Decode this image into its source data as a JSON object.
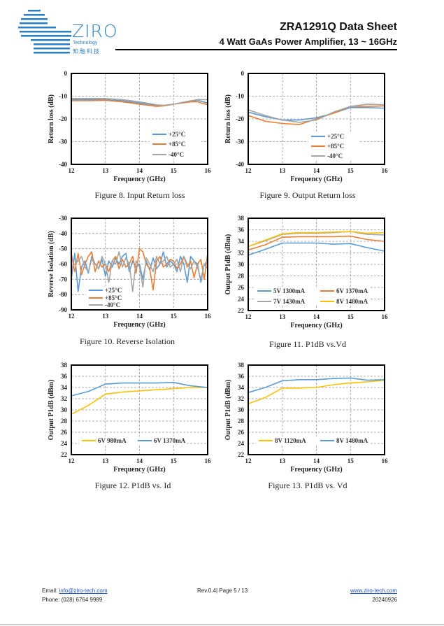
{
  "header": {
    "logo": {
      "name": "ZIRO",
      "tagline": "Technology",
      "chinese": "知融科技",
      "color": "#2b7fc0"
    },
    "title": "ZRA1291Q Data Sheet",
    "subtitle": "4 Watt GaAs Power Amplifier, 13 ~ 16GHz"
  },
  "footer": {
    "email_label": "Email:",
    "email": "info@ziro-tech.com",
    "phone_label": "Phone:",
    "phone": "(028) 6764 9989",
    "revision": "Rev.0.4| Page 5 / 13",
    "website": "www.ziro-tech.com",
    "date": "20240926"
  },
  "chart_data": [
    {
      "type": "line",
      "caption": "Figure 8. Input Return loss",
      "xlabel": "Frequency (GHz)",
      "ylabel": "Return loss (dB)",
      "xlim": [
        12,
        16
      ],
      "ylim": [
        -40,
        0
      ],
      "grid": true,
      "legend": "bottom-right",
      "xticks": [
        "12",
        "13",
        "14",
        "15",
        "16"
      ],
      "yticks": [
        "0",
        "-10",
        "-20",
        "-30",
        "-40"
      ],
      "x": [
        12,
        12.5,
        13,
        13.5,
        14,
        14.5,
        14.7,
        15,
        15.5,
        15.7,
        16
      ],
      "series": [
        {
          "name": "+25°C",
          "color": "#5b9bd5",
          "values": [
            -11.5,
            -11.5,
            -11.5,
            -12,
            -13,
            -14,
            -14.2,
            -13.5,
            -12.5,
            -11.8,
            -13
          ]
        },
        {
          "name": "+85°C",
          "color": "#ed7d31",
          "values": [
            -12,
            -12,
            -11.8,
            -12.5,
            -13.5,
            -14.5,
            -14.3,
            -13.5,
            -12.5,
            -12.5,
            -13.8
          ]
        },
        {
          "name": "-40°C",
          "color": "#a5a5a5",
          "values": [
            -11,
            -11,
            -11,
            -11.5,
            -12.5,
            -13.8,
            -14,
            -13.5,
            -12,
            -11.5,
            -11.5
          ]
        }
      ]
    },
    {
      "type": "line",
      "caption": "Figure 9. Output Return loss",
      "xlabel": "Frequency (GHz)",
      "ylabel": "Return loss (dB)",
      "xlim": [
        12,
        16
      ],
      "ylim": [
        -40,
        0
      ],
      "grid": true,
      "legend": "bottom-right",
      "xticks": [
        "12",
        "13",
        "14",
        "15",
        "16"
      ],
      "yticks": [
        "0",
        "-10",
        "-20",
        "-30",
        "-40"
      ],
      "x": [
        12,
        12.5,
        13,
        13.5,
        14,
        14.5,
        15,
        15.5,
        16
      ],
      "series": [
        {
          "name": "+25°C",
          "color": "#5b9bd5",
          "values": [
            -17,
            -19,
            -20.5,
            -20.5,
            -19.5,
            -17.5,
            -15,
            -15,
            -15.3
          ]
        },
        {
          "name": "+85°C",
          "color": "#ed7d31",
          "values": [
            -18.5,
            -21,
            -22,
            -22.5,
            -20,
            -17.5,
            -14.5,
            -14.5,
            -14.3
          ]
        },
        {
          "name": "-40°C",
          "color": "#a5a5a5",
          "values": [
            -16,
            -18.5,
            -20.5,
            -21.5,
            -20.5,
            -17,
            -14.5,
            -13.5,
            -13.8
          ]
        }
      ]
    },
    {
      "type": "line",
      "caption": "Figure 10. Reverse Isolation",
      "xlabel": "Frequency (GHz)",
      "ylabel": "Reverse Isolation (dB)",
      "xlim": [
        12,
        16
      ],
      "ylim": [
        -90,
        -30
      ],
      "grid": true,
      "legend": "bottom-left",
      "xticks": [
        "12",
        "13",
        "14",
        "15",
        "16"
      ],
      "yticks": [
        "-30",
        "-40",
        "-50",
        "-60",
        "-70",
        "-80",
        "-90"
      ],
      "x": [
        12,
        12.1,
        12.2,
        12.3,
        12.4,
        12.5,
        12.6,
        12.7,
        12.8,
        12.9,
        13,
        13.1,
        13.2,
        13.3,
        13.4,
        13.5,
        13.6,
        13.7,
        13.8,
        13.9,
        14,
        14.1,
        14.2,
        14.3,
        14.4,
        14.5,
        14.6,
        14.7,
        14.8,
        14.9,
        15,
        15.1,
        15.2,
        15.3,
        15.4,
        15.5,
        15.6,
        15.7,
        15.8,
        15.9,
        16
      ],
      "series": [
        {
          "name": "+25°C",
          "color": "#5b9bd5",
          "values": [
            -70,
            -53,
            -78,
            -62,
            -58,
            -66,
            -55,
            -60,
            -63,
            -57,
            -68,
            -58,
            -62,
            -56,
            -60,
            -55,
            -53,
            -65,
            -58,
            -62,
            -60,
            -70,
            -58,
            -64,
            -56,
            -63,
            -60,
            -52,
            -62,
            -58,
            -60,
            -65,
            -55,
            -60,
            -72,
            -55,
            -58,
            -60,
            -72,
            -60,
            -63
          ]
        },
        {
          "name": "+85°C",
          "color": "#ed7d31",
          "values": [
            -53,
            -65,
            -53,
            -67,
            -60,
            -55,
            -52,
            -65,
            -58,
            -62,
            -60,
            -65,
            -58,
            -55,
            -63,
            -57,
            -62,
            -60,
            -55,
            -66,
            -50,
            -52,
            -60,
            -63,
            -77,
            -58,
            -55,
            -62,
            -60,
            -57,
            -58,
            -63,
            -60,
            -55,
            -62,
            -58,
            -69,
            -60,
            -57,
            -70,
            -53
          ]
        },
        {
          "name": "-40°C",
          "color": "#a5a5a5",
          "values": [
            -62,
            -60,
            -58,
            -55,
            -62,
            -65,
            -57,
            -60,
            -63,
            -55,
            -60,
            -72,
            -58,
            -60,
            -52,
            -62,
            -56,
            -60,
            -78,
            -58,
            -62,
            -75,
            -56,
            -60,
            -65,
            -55,
            -60,
            -58,
            -55,
            -62,
            -60,
            -57,
            -65,
            -55,
            -60,
            -63,
            -58,
            -62,
            -70,
            -60,
            -58
          ]
        }
      ]
    },
    {
      "type": "line",
      "caption": "Figure 11. P1dB vs.Vd",
      "xlabel": "Frequency (GHz)",
      "ylabel": "Output P1dB (dBm)",
      "xlim": [
        12,
        16
      ],
      "ylim": [
        22,
        38
      ],
      "grid": true,
      "legend": "bottom",
      "xticks": [
        "12",
        "13",
        "14",
        "15",
        "16"
      ],
      "yticks": [
        "38",
        "36",
        "34",
        "32",
        "30",
        "28",
        "26",
        "24",
        "22"
      ],
      "x": [
        12,
        12.5,
        13,
        13.5,
        14,
        14.5,
        15,
        15.5,
        16
      ],
      "series": [
        {
          "name": "5V 1300mA",
          "color": "#5b9bd5",
          "values": [
            31.6,
            32.6,
            33.7,
            33.7,
            33.7,
            33.5,
            33.6,
            32.9,
            32.3
          ]
        },
        {
          "name": "6V 1370mA",
          "color": "#ed7d31",
          "values": [
            32.5,
            33.4,
            34.7,
            34.8,
            34.8,
            34.8,
            34.9,
            34.3,
            34.0
          ]
        },
        {
          "name": "7V 1430mA",
          "color": "#a5a5a5",
          "values": [
            33.1,
            34.1,
            35.2,
            35.4,
            35.4,
            35.5,
            35.7,
            35.2,
            35.1
          ]
        },
        {
          "name": "8V 1480mA",
          "color": "#ffc000",
          "values": [
            33.1,
            34.2,
            35.3,
            35.5,
            35.5,
            35.6,
            35.7,
            35.4,
            35.5
          ]
        }
      ]
    },
    {
      "type": "line",
      "caption": "Figure 12. P1dB vs. Id",
      "xlabel": "Frequency (GHz)",
      "ylabel": "Output P1dB (dBm)",
      "xlim": [
        12,
        16
      ],
      "ylim": [
        22,
        38
      ],
      "grid": true,
      "legend": "bottom",
      "xticks": [
        "12",
        "13",
        "14",
        "15",
        "16"
      ],
      "yticks": [
        "38",
        "36",
        "34",
        "32",
        "30",
        "28",
        "26",
        "24",
        "22"
      ],
      "x": [
        12,
        12.5,
        13,
        13.5,
        14,
        14.5,
        15,
        15.5,
        16
      ],
      "series": [
        {
          "name": "6V 980mA",
          "color": "#ffc000",
          "values": [
            29.2,
            30.8,
            32.8,
            33.2,
            33.4,
            33.6,
            33.8,
            34.0,
            34.0
          ]
        },
        {
          "name": "6V 1370mA",
          "color": "#5b9bd5",
          "values": [
            32.5,
            33.3,
            34.6,
            34.8,
            34.8,
            34.8,
            34.9,
            34.3,
            34.0
          ]
        }
      ]
    },
    {
      "type": "line",
      "caption": "Figure 13. P1dB vs. Vd",
      "xlabel": "Frequency (GHz)",
      "ylabel": "Output P1dB (dBm)",
      "xlim": [
        12,
        16
      ],
      "ylim": [
        22,
        38
      ],
      "grid": true,
      "legend": "bottom",
      "xticks": [
        "12",
        "13",
        "14",
        "15",
        "16"
      ],
      "yticks": [
        "38",
        "36",
        "34",
        "32",
        "30",
        "28",
        "26",
        "24",
        "22"
      ],
      "x": [
        12,
        12.5,
        13,
        13.5,
        14,
        14.5,
        15,
        15.5,
        16
      ],
      "series": [
        {
          "name": "8V 1120mA",
          "color": "#ffc000",
          "values": [
            31.1,
            32.2,
            33.9,
            33.9,
            34.0,
            34.5,
            34.8,
            35.0,
            35.3
          ]
        },
        {
          "name": "8V 1480mA",
          "color": "#5b9bd5",
          "values": [
            33.1,
            34.0,
            35.2,
            35.4,
            35.4,
            35.6,
            35.7,
            35.3,
            35.4
          ]
        }
      ]
    }
  ]
}
